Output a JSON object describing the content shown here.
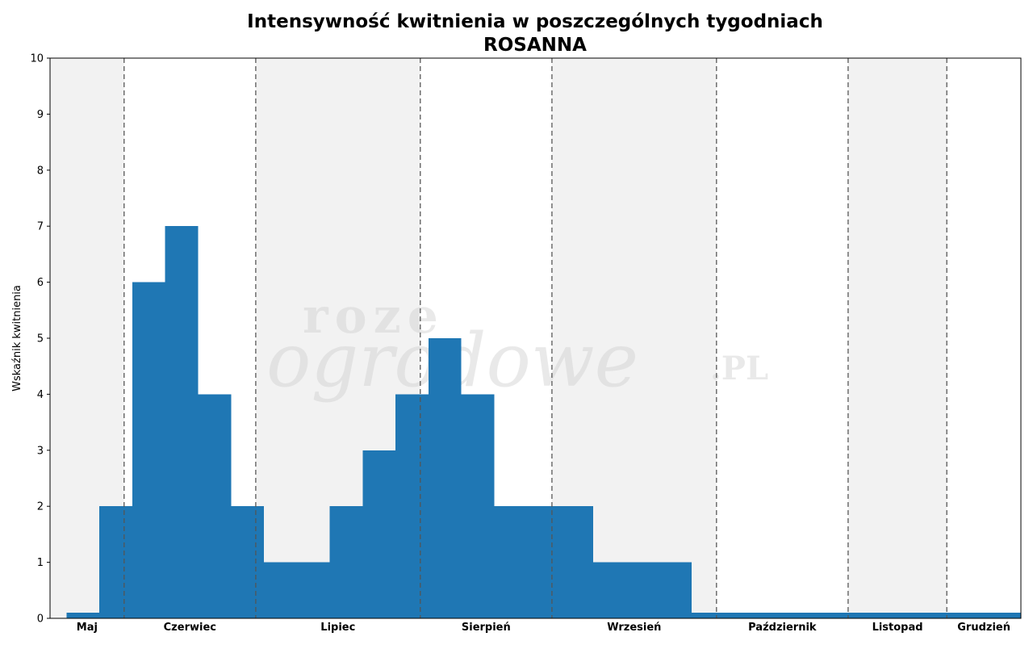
{
  "chart_data": {
    "type": "bar",
    "title": "Intensywność kwitnienia w poszczególnych tygodniach",
    "subtitle": "ROSANNA",
    "ylabel": "Wskaźnik kwitnienia",
    "xlabel": "",
    "ylim": [
      0,
      10
    ],
    "yticks": [
      0,
      1,
      2,
      3,
      4,
      5,
      6,
      7,
      8,
      9,
      10
    ],
    "grid": false,
    "bar_color": "#1f77b4",
    "month_shade_color": "#f2f2f2",
    "separator_color": "#555555",
    "x_start_week": 18,
    "x_end_week": 47.5,
    "weeks": [
      18,
      19,
      20,
      21,
      22,
      23,
      24,
      25,
      26,
      27,
      28,
      29,
      30,
      31,
      32,
      33,
      34,
      35,
      36,
      37,
      38,
      39,
      40,
      41,
      42,
      43,
      44,
      45,
      46,
      47
    ],
    "values": [
      0,
      0.1,
      2,
      6,
      7,
      4,
      2,
      1,
      1,
      2,
      3,
      4,
      5,
      4,
      2,
      2,
      2,
      1,
      1,
      1,
      0.1,
      0.1,
      0.1,
      0.1,
      0.1,
      0.1,
      0.1,
      0.1,
      0.1,
      0.1
    ],
    "months": [
      {
        "name": "Maj",
        "start": 18,
        "end": 20.25,
        "shaded": true
      },
      {
        "name": "Czerwiec",
        "start": 20.25,
        "end": 24.25,
        "shaded": false
      },
      {
        "name": "Lipiec",
        "start": 24.25,
        "end": 29.25,
        "shaded": true
      },
      {
        "name": "Sierpień",
        "start": 29.25,
        "end": 33.25,
        "shaded": false
      },
      {
        "name": "Wrzesień",
        "start": 33.25,
        "end": 38.25,
        "shaded": true
      },
      {
        "name": "Październik",
        "start": 38.25,
        "end": 42.25,
        "shaded": false
      },
      {
        "name": "Listopad",
        "start": 42.25,
        "end": 45.25,
        "shaded": true
      },
      {
        "name": "Grudzień",
        "start": 45.25,
        "end": 47.5,
        "shaded": false
      }
    ],
    "separators": [
      20.25,
      24.25,
      29.25,
      33.25,
      38.25,
      42.25,
      45.25
    ]
  },
  "watermark": {
    "line1": "roze",
    "line2": "ogrodowe",
    "suffix": ".PL"
  }
}
